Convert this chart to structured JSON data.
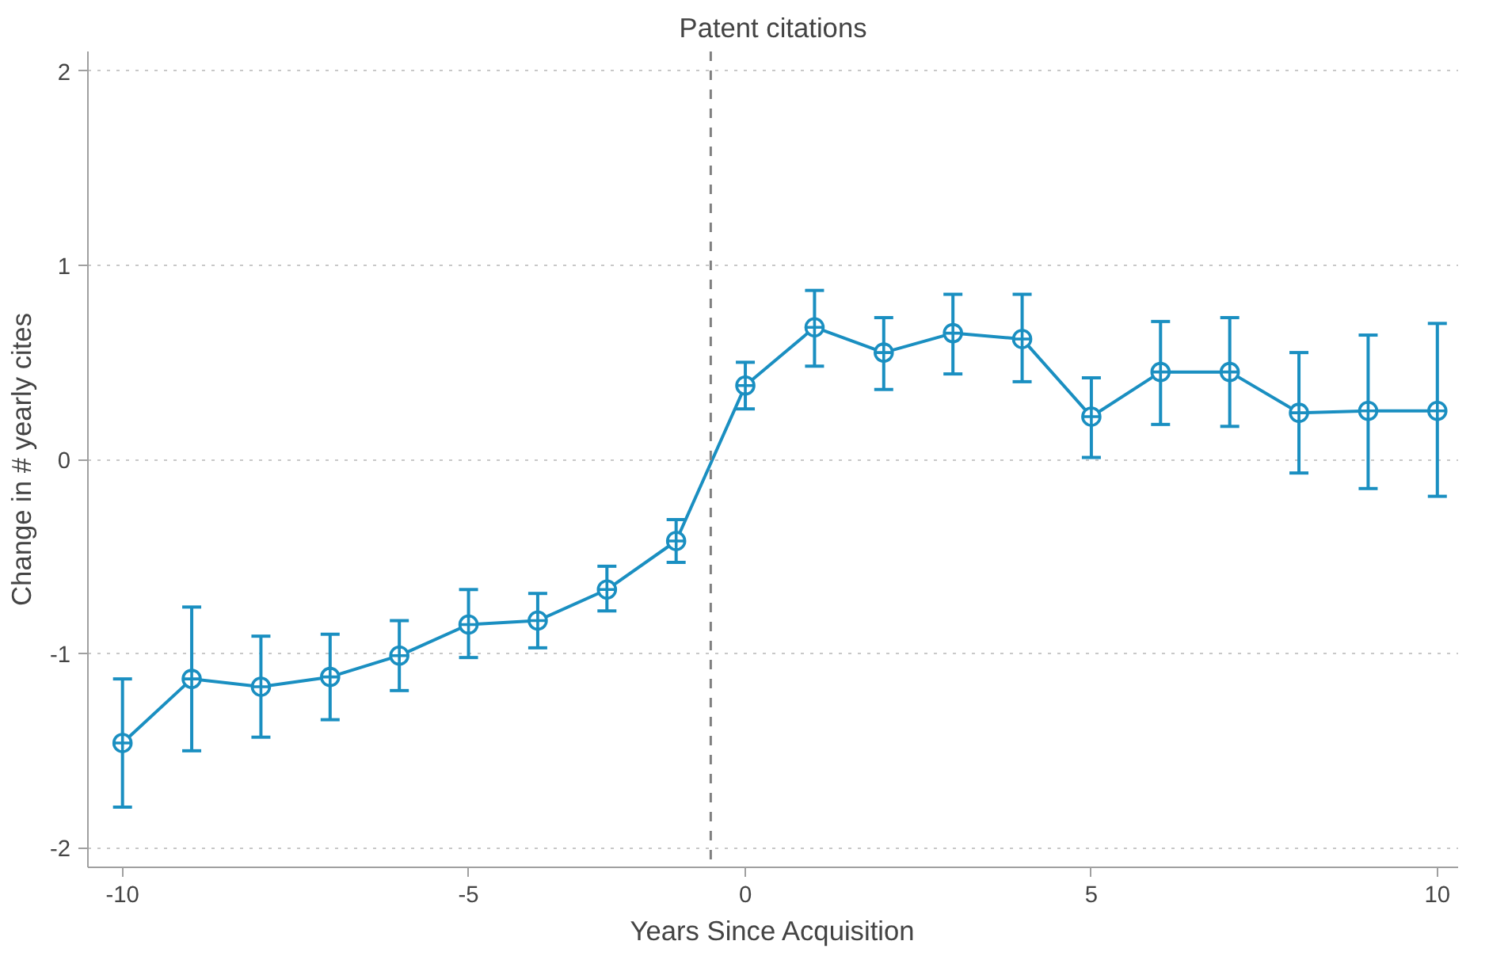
{
  "chart_data": {
    "type": "line",
    "title": "Patent citations",
    "xlabel": "Years Since Acquisition",
    "ylabel": "Change in # yearly cites",
    "categories": [
      "-10",
      null,
      null,
      null,
      null,
      "-5",
      null,
      null,
      null,
      "0",
      null,
      null,
      null,
      null,
      "5",
      null,
      null,
      null,
      null,
      "10"
    ],
    "series": [
      {
        "color": "#1a8fc1",
        "values": [
          -1.46,
          -1.13,
          -1.17,
          -1.12,
          -1.01,
          -0.85,
          -0.83,
          -0.67,
          -0.42,
          0.38,
          0.68,
          0.55,
          0.65,
          0.62,
          0.22,
          0.45,
          0.45,
          0.24,
          0.25,
          0.25
        ],
        "errors": [
          [
            -1.79,
            -1.13
          ],
          [
            -1.5,
            -0.76
          ],
          [
            -1.43,
            -0.91
          ],
          [
            -1.34,
            -0.9
          ],
          [
            -1.19,
            -0.83
          ],
          [
            -1.02,
            -0.67
          ],
          [
            -0.97,
            -0.69
          ],
          [
            -0.78,
            -0.55
          ],
          [
            -0.53,
            -0.31
          ],
          [
            0.26,
            0.5
          ],
          [
            0.48,
            0.87
          ],
          [
            0.36,
            0.73
          ],
          [
            0.44,
            0.85
          ],
          [
            0.4,
            0.85
          ],
          [
            0.01,
            0.42
          ],
          [
            0.18,
            0.71
          ],
          [
            0.17,
            0.73
          ],
          [
            -0.07,
            0.55
          ],
          [
            -0.15,
            0.64
          ],
          [
            -0.19,
            0.7
          ]
        ]
      }
    ],
    "ylim": [
      -2.1,
      2.1
    ],
    "yticks": [
      -2,
      -1,
      0,
      1,
      2
    ],
    "grid": "y",
    "marker": "circle",
    "line_style": "solid"
  }
}
